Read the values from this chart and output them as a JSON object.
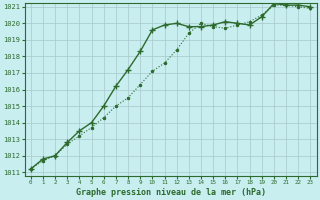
{
  "title": "Graphe pression niveau de la mer (hPa)",
  "background_color": "#c8eef0",
  "line_color": "#2d6a2d",
  "x_labels": [
    "0",
    "1",
    "2",
    "3",
    "4",
    "5",
    "6",
    "7",
    "8",
    "9",
    "10",
    "11",
    "12",
    "13",
    "14",
    "15",
    "16",
    "17",
    "18",
    "19",
    "20",
    "21",
    "22",
    "23"
  ],
  "y_min": 1011,
  "y_max": 1021,
  "y_ticks": [
    1011,
    1012,
    1013,
    1014,
    1015,
    1016,
    1017,
    1018,
    1019,
    1020,
    1021
  ],
  "series1_x": [
    0,
    1,
    2,
    3,
    4,
    5,
    6,
    7,
    8,
    9,
    10,
    11,
    12,
    13,
    14,
    15,
    16,
    17,
    18,
    19,
    20,
    21,
    22,
    23
  ],
  "series1_y": [
    1011.2,
    1011.7,
    1012.0,
    1012.7,
    1013.2,
    1013.7,
    1014.3,
    1015.0,
    1015.5,
    1016.3,
    1017.1,
    1017.6,
    1018.4,
    1019.4,
    1020.0,
    1019.8,
    1019.7,
    1019.9,
    1020.1,
    1020.5,
    1021.1,
    1021.1,
    1021.0,
    1020.9
  ],
  "series2_x": [
    0,
    1,
    2,
    3,
    4,
    5,
    6,
    7,
    8,
    9,
    10,
    11,
    12,
    13,
    14,
    15,
    16,
    17,
    18,
    19,
    20,
    21,
    22,
    23
  ],
  "series2_y": [
    1011.2,
    1011.8,
    1012.0,
    1012.8,
    1013.5,
    1014.0,
    1015.0,
    1016.2,
    1017.2,
    1018.3,
    1019.6,
    1019.9,
    1020.0,
    1019.8,
    1019.8,
    1019.9,
    1020.1,
    1020.0,
    1019.9,
    1020.4,
    1021.2,
    1021.1,
    1021.1,
    1021.0
  ]
}
